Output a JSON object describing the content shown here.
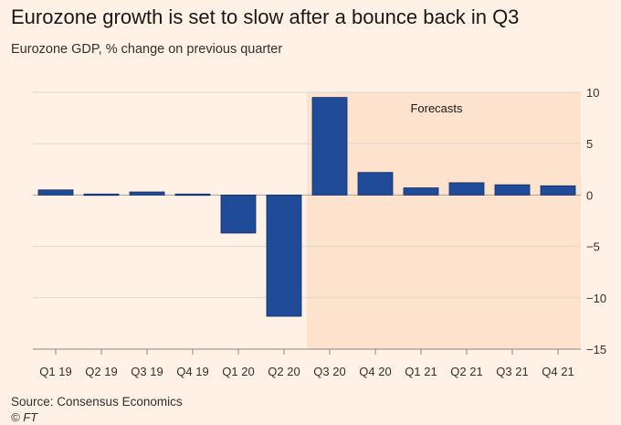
{
  "header": {
    "title": "Eurozone growth is set to slow after a bounce back in Q3",
    "subtitle": "Eurozone GDP, % change on previous quarter"
  },
  "footer": {
    "source": "Source: Consensus Economics",
    "credit": "© FT"
  },
  "colors": {
    "background": "#fff1e5",
    "bar": "#1f4b99",
    "bar_stroke": "#0f2c63",
    "forecast_shade": "#fde3cd",
    "grid": "#e1d7cd",
    "axis_text": "#33302e"
  },
  "chart_data": {
    "type": "bar",
    "title": "Eurozone growth is set to slow after a bounce back in Q3",
    "subtitle": "Eurozone GDP, % change on previous quarter",
    "xlabel": "",
    "ylabel": "",
    "categories": [
      "Q1 19",
      "Q2 19",
      "Q3 19",
      "Q4 19",
      "Q1 20",
      "Q2 20",
      "Q3 20",
      "Q4 20",
      "Q1 21",
      "Q2 21",
      "Q3 21",
      "Q4 21"
    ],
    "values": [
      0.5,
      0.1,
      0.3,
      0.1,
      -3.7,
      -11.8,
      9.5,
      2.2,
      0.7,
      1.2,
      1.0,
      0.9
    ],
    "ylim": [
      -15,
      10
    ],
    "yticks": [
      10,
      5,
      0,
      -5,
      -10,
      -15
    ],
    "grid": true,
    "axis_side": "right",
    "annotation": {
      "label": "Forecasts",
      "from_category": "Q3 20",
      "to_category": "Q4 21"
    }
  }
}
